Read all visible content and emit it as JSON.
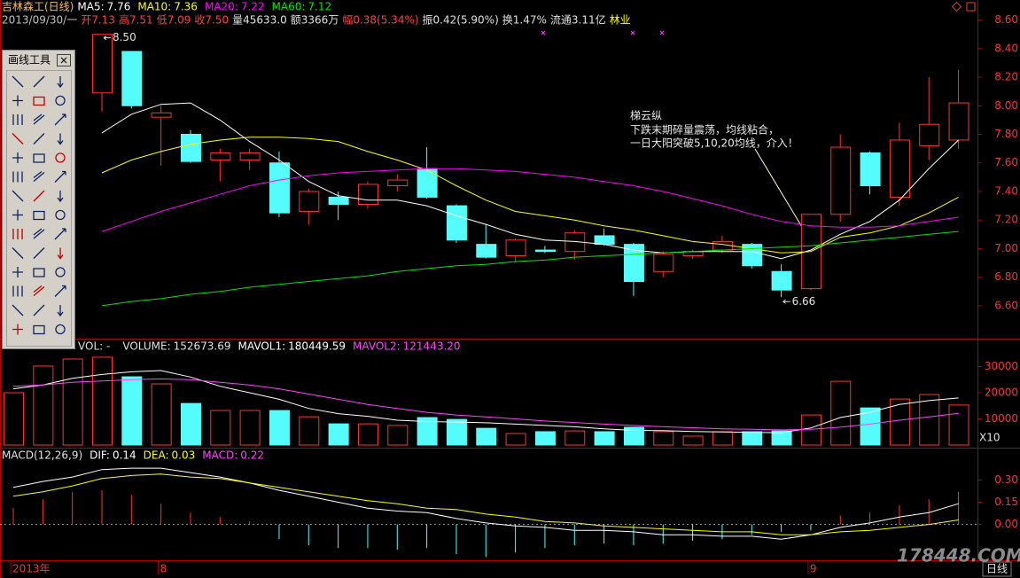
{
  "quote": [
    {
      "text": "2013/09/30/一",
      "color": "#c0c0c0"
    },
    {
      "text": "开7.13",
      "color": "#ff4040"
    },
    {
      "text": "高7.51",
      "color": "#ff4040"
    },
    {
      "text": "低7.09",
      "color": "#ff4040"
    },
    {
      "text": "收7.50",
      "color": "#ff4040"
    },
    {
      "text": "量45633.0",
      "color": "#e0e0e0"
    },
    {
      "text": "额3366万",
      "color": "#e0e0e0"
    },
    {
      "text": "幅0.38(5.34%)",
      "color": "#ff4040"
    },
    {
      "text": "振0.42(5.90%)",
      "color": "#e0e0e0"
    },
    {
      "text": "换1.47%",
      "color": "#e0e0e0"
    },
    {
      "text": "流通3.11亿",
      "color": "#e0e0e0"
    },
    {
      "text": "林业",
      "color": "#ffff00"
    }
  ],
  "annotation": [
    "梯云纵",
    "下跌末期碎量震荡，均线粘合，",
    "一日大阳突破5,10,20均线，介入！"
  ],
  "toolbox": {
    "title": "画线工具"
  },
  "period": "日线",
  "watermark": "178448.COM",
  "chart_data": [
    {
      "type": "candlestick",
      "title": "吉林森工(日线)",
      "categories": [
        "2013年",
        null,
        null,
        null,
        null,
        "8",
        null,
        null,
        null,
        null,
        null,
        null,
        null,
        null,
        null,
        null,
        null,
        null,
        null,
        null,
        null,
        null,
        null,
        null,
        null,
        null,
        null,
        "9",
        null,
        null,
        null,
        null,
        null
      ],
      "open": [
        null,
        null,
        null,
        8.09,
        8.38,
        7.92,
        7.8,
        7.62,
        7.62,
        7.6,
        7.26,
        7.36,
        7.31,
        7.44,
        7.56,
        7.3,
        7.03,
        6.95,
        6.99,
        6.98,
        7.09,
        7.03,
        6.84,
        6.95,
        6.99,
        7.03,
        6.84,
        6.72,
        7.24,
        7.67,
        7.36,
        7.72,
        7.76
      ],
      "high": [
        null,
        null,
        null,
        8.5,
        8.38,
        8.0,
        7.83,
        7.7,
        7.7,
        7.68,
        7.42,
        7.4,
        7.47,
        7.52,
        7.71,
        7.31,
        7.17,
        7.07,
        7.02,
        7.13,
        7.14,
        7.04,
        6.98,
        6.99,
        7.09,
        7.04,
        6.89,
        7.24,
        7.8,
        7.68,
        7.88,
        8.2,
        8.25
      ],
      "low": [
        null,
        null,
        null,
        7.96,
        7.98,
        7.58,
        7.6,
        7.47,
        7.55,
        7.22,
        7.17,
        7.2,
        7.28,
        7.4,
        7.35,
        7.04,
        6.93,
        6.9,
        6.97,
        6.92,
        7.02,
        6.67,
        6.8,
        6.93,
        6.97,
        6.86,
        6.66,
        6.71,
        7.19,
        7.38,
        7.3,
        7.62,
        7.7
      ],
      "close": [
        null,
        null,
        null,
        8.5,
        8.0,
        7.95,
        7.61,
        7.67,
        7.67,
        7.25,
        7.4,
        7.31,
        7.45,
        7.48,
        7.36,
        7.06,
        6.94,
        7.06,
        6.98,
        7.11,
        7.03,
        6.77,
        6.96,
        6.98,
        7.05,
        6.88,
        6.71,
        7.24,
        7.71,
        7.44,
        7.76,
        7.87,
        8.02
      ],
      "up_color": "#ff3232",
      "down_color": "#54fcfc",
      "extreme_labels": {
        "max": "8.50",
        "min": "6.66"
      },
      "series": [
        {
          "name": "MA5:",
          "color": "#ffffff",
          "values": [
            null,
            null,
            null,
            7.81,
            7.94,
            8.01,
            8.02,
            7.9,
            7.75,
            7.62,
            7.47,
            7.37,
            7.34,
            7.34,
            7.3,
            7.23,
            7.17,
            7.1,
            7.06,
            7.05,
            7.03,
            6.99,
            6.97,
            6.98,
            6.98,
            6.98,
            6.93,
            6.99,
            7.1,
            7.19,
            7.34,
            7.56,
            7.76
          ]
        },
        {
          "name": "MA10:",
          "color": "#ffff00",
          "values": [
            null,
            null,
            null,
            7.53,
            7.62,
            7.68,
            7.73,
            7.76,
            7.78,
            7.78,
            7.77,
            7.75,
            7.68,
            7.62,
            7.55,
            7.44,
            7.34,
            7.26,
            7.23,
            7.2,
            7.16,
            7.13,
            7.09,
            7.05,
            7.03,
            7.0,
            6.97,
            6.98,
            7.08,
            7.11,
            7.16,
            7.25,
            7.36
          ]
        },
        {
          "name": "MA20:",
          "color": "#ff00ff",
          "values": [
            null,
            null,
            null,
            7.12,
            7.19,
            7.26,
            7.32,
            7.38,
            7.44,
            7.48,
            7.51,
            7.53,
            7.54,
            7.55,
            7.56,
            7.56,
            7.55,
            7.54,
            7.52,
            7.5,
            7.47,
            7.44,
            7.4,
            7.35,
            7.3,
            7.24,
            7.19,
            7.16,
            7.15,
            7.15,
            7.16,
            7.19,
            7.22
          ]
        },
        {
          "name": "MA60:",
          "color": "#00e600",
          "values": [
            null,
            null,
            null,
            6.6,
            6.63,
            6.65,
            6.68,
            6.7,
            6.73,
            6.75,
            6.77,
            6.79,
            6.81,
            6.84,
            6.86,
            6.88,
            6.89,
            6.91,
            6.92,
            6.94,
            6.95,
            6.96,
            6.97,
            6.98,
            6.99,
            7.0,
            7.01,
            7.02,
            7.04,
            7.06,
            7.08,
            7.1,
            7.12
          ]
        }
      ],
      "ylim": [
        6.37,
        8.74
      ],
      "yticks": [
        {
          "value": 6.6,
          "label": "6.60"
        },
        {
          "value": 6.8,
          "label": "6.80"
        },
        {
          "value": 7.0,
          "label": "7.00"
        },
        {
          "value": 7.2,
          "label": "7.20"
        },
        {
          "value": 7.4,
          "label": "7.40"
        },
        {
          "value": 7.6,
          "label": "7.60"
        },
        {
          "value": 7.8,
          "label": "7.80"
        },
        {
          "value": 8.0,
          "label": "8.00"
        },
        {
          "value": 8.2,
          "label": "8.20"
        },
        {
          "value": 8.4,
          "label": "8.40"
        },
        {
          "value": 8.6,
          "label": "8.60"
        }
      ]
    },
    {
      "type": "bar",
      "title": "VOL: -",
      "unit_label": "X10",
      "up_color": "#ff3232",
      "ylim": [
        0,
        39000
      ],
      "yticks": [
        10000,
        20000,
        30000
      ],
      "series": [
        {
          "name": "VOLUME:",
          "color": "#e0e0e0",
          "current": 152673.69,
          "values": [
            20000,
            30200,
            32900,
            33600,
            26100,
            23400,
            15900,
            13200,
            13200,
            13200,
            10800,
            8100,
            8100,
            7500,
            10500,
            9800,
            6400,
            4400,
            5100,
            5400,
            5100,
            6800,
            5100,
            3400,
            5100,
            5100,
            5400,
            11500,
            24400,
            14200,
            17600,
            19300,
            15300
          ],
          "colors": [
            "#ff3232",
            "#ff3232",
            "#ff3232",
            "#ff3232",
            "#54fcfc",
            "#ff3232",
            "#54fcfc",
            "#ff3232",
            "#ff3232",
            "#54fcfc",
            "#ff3232",
            "#54fcfc",
            "#ff3232",
            "#ff3232",
            "#54fcfc",
            "#54fcfc",
            "#54fcfc",
            "#ff3232",
            "#54fcfc",
            "#ff3232",
            "#54fcfc",
            "#54fcfc",
            "#ff3232",
            "#ff3232",
            "#ff3232",
            "#54fcfc",
            "#54fcfc",
            "#ff3232",
            "#ff3232",
            "#54fcfc",
            "#ff3232",
            "#ff3232",
            "#ff3232"
          ]
        },
        {
          "name": "MAVOL1:",
          "color": "#ffffff",
          "current": 180449.59,
          "values": [
            21500,
            23000,
            25500,
            27000,
            28000,
            28500,
            26000,
            22500,
            20000,
            17500,
            14000,
            12000,
            11000,
            9500,
            9000,
            8800,
            8500,
            8000,
            7500,
            7000,
            6200,
            5600,
            5500,
            5200,
            5000,
            4800,
            4700,
            6500,
            10500,
            12500,
            15500,
            17000,
            18000
          ]
        },
        {
          "name": "MAVOL2:",
          "color": "#ff40ff",
          "current": 121443.2,
          "current_label": "121443.20",
          "values": [
            22500,
            23000,
            24000,
            24500,
            25000,
            25300,
            25000,
            24000,
            23000,
            21500,
            19500,
            17500,
            15500,
            14000,
            12500,
            11500,
            10800,
            10000,
            9200,
            8600,
            8000,
            7500,
            7000,
            6600,
            6200,
            6000,
            5800,
            6000,
            6800,
            8000,
            9500,
            10800,
            12100
          ]
        }
      ]
    },
    {
      "type": "macd",
      "title": "MACD(12,26,9)",
      "up_color": "#ff3232",
      "down_color": "#54fcfc",
      "zero_line": true,
      "ylim": [
        -0.23,
        0.5
      ],
      "yticks": [
        {
          "value": 0,
          "label": "0.00"
        },
        {
          "value": 0.15,
          "label": "0.15"
        },
        {
          "value": 0.3,
          "label": "0.30"
        }
      ],
      "series": [
        {
          "name": "DIF:",
          "color": "#ffffff",
          "values": [
            0.25,
            0.29,
            0.32,
            0.37,
            0.38,
            0.38,
            0.35,
            0.32,
            0.28,
            0.23,
            0.19,
            0.15,
            0.11,
            0.09,
            0.08,
            0.04,
            0.01,
            -0.01,
            -0.02,
            -0.04,
            -0.04,
            -0.05,
            -0.07,
            -0.07,
            -0.08,
            -0.08,
            -0.1,
            -0.07,
            -0.02,
            0.01,
            0.05,
            0.08,
            0.14
          ]
        },
        {
          "name": "DEA:",
          "color": "#ffff00",
          "values": [
            0.19,
            0.22,
            0.26,
            0.31,
            0.33,
            0.34,
            0.32,
            0.31,
            0.28,
            0.25,
            0.22,
            0.19,
            0.16,
            0.14,
            0.11,
            0.1,
            0.07,
            0.05,
            0.02,
            0.01,
            -0.01,
            -0.02,
            -0.03,
            -0.04,
            -0.05,
            -0.05,
            -0.07,
            -0.07,
            -0.05,
            -0.04,
            -0.02,
            0.0,
            0.03
          ]
        },
        {
          "name": "MACD:",
          "color": "#ff40ff",
          "values": [
            0.11,
            0.17,
            0.22,
            0.23,
            0.2,
            0.14,
            0.08,
            0.05,
            0.02,
            -0.1,
            -0.14,
            -0.16,
            -0.16,
            -0.17,
            -0.16,
            -0.2,
            -0.22,
            -0.19,
            -0.16,
            -0.14,
            -0.13,
            -0.14,
            -0.13,
            -0.11,
            -0.1,
            -0.07,
            -0.05,
            -0.04,
            0.06,
            0.08,
            0.13,
            0.17,
            0.22
          ]
        }
      ]
    }
  ]
}
